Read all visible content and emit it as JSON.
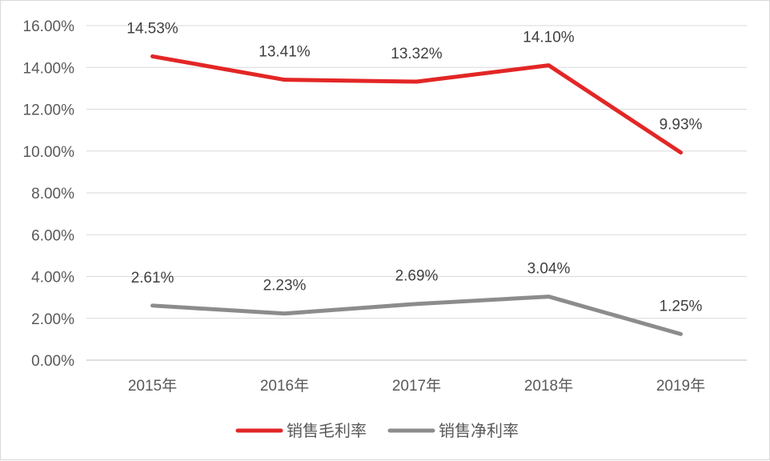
{
  "chart_data": {
    "type": "line",
    "title": "",
    "xlabel": "",
    "ylabel": "",
    "categories": [
      "2015年",
      "2016年",
      "2017年",
      "2018年",
      "2019年"
    ],
    "ylim": [
      0,
      16
    ],
    "y_ticks": [
      "0.00%",
      "2.00%",
      "4.00%",
      "6.00%",
      "8.00%",
      "10.00%",
      "12.00%",
      "14.00%",
      "16.00%"
    ],
    "grid": true,
    "legend_position": "bottom",
    "series": [
      {
        "name": "销售毛利率",
        "color": "#e32626",
        "values": [
          14.53,
          13.41,
          13.32,
          14.1,
          9.93
        ],
        "labels": [
          "14.53%",
          "13.41%",
          "13.32%",
          "14.10%",
          "9.93%"
        ]
      },
      {
        "name": "销售净利率",
        "color": "#8c8c8c",
        "values": [
          2.61,
          2.23,
          2.69,
          3.04,
          1.25
        ],
        "labels": [
          "2.61%",
          "2.23%",
          "2.69%",
          "3.04%",
          "1.25%"
        ]
      }
    ]
  }
}
